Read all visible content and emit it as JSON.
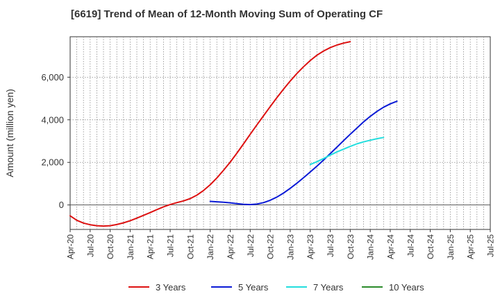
{
  "chart_data": {
    "type": "line",
    "title": "[6619]  Trend of Mean of 12-Month Moving Sum of Operating CF",
    "xlabel": "",
    "ylabel": "Amount (million yen)",
    "ylim": [
      -1150,
      7900
    ],
    "yticks": [
      0,
      2000,
      4000,
      6000
    ],
    "ytick_labels": [
      "0",
      "2,000",
      "4,000",
      "6,000"
    ],
    "x_categories": [
      "Apr-20",
      "Jul-20",
      "Oct-20",
      "Jan-21",
      "Apr-21",
      "Jul-21",
      "Oct-21",
      "Jan-22",
      "Apr-22",
      "Jul-22",
      "Oct-22",
      "Jan-23",
      "Apr-23",
      "Jul-23",
      "Oct-23",
      "Jan-24",
      "Apr-24",
      "Jul-24",
      "Oct-24",
      "Jan-25",
      "Apr-25",
      "Jul-25"
    ],
    "legend_position": "bottom",
    "grid": true,
    "series": [
      {
        "name": "3 Years",
        "color": "#dd1111",
        "start_index": 0,
        "values": [
          -510,
          -720,
          -850,
          -930,
          -975,
          -990,
          -975,
          -920,
          -840,
          -740,
          -620,
          -490,
          -360,
          -220,
          -90,
          20,
          110,
          190,
          300,
          460,
          680,
          950,
          1270,
          1630,
          2010,
          2430,
          2870,
          3320,
          3760,
          4190,
          4620,
          5040,
          5440,
          5820,
          6170,
          6490,
          6780,
          7030,
          7230,
          7390,
          7510,
          7600,
          7670
        ]
      },
      {
        "name": "5 Years",
        "color": "#0a1ad6",
        "start_index": 21,
        "values": [
          170,
          150,
          130,
          100,
          60,
          30,
          20,
          40,
          110,
          220,
          370,
          560,
          780,
          1020,
          1280,
          1550,
          1820,
          2110,
          2410,
          2710,
          3020,
          3320,
          3610,
          3900,
          4160,
          4390,
          4590,
          4750,
          4870
        ]
      },
      {
        "name": "7 Years",
        "color": "#22dddd",
        "start_index": 36,
        "values": [
          1900,
          2030,
          2180,
          2340,
          2490,
          2620,
          2750,
          2870,
          2960,
          3040,
          3110,
          3170
        ]
      },
      {
        "name": "10 Years",
        "color": "#2a8a2a",
        "start_index": 0,
        "values": []
      }
    ]
  }
}
